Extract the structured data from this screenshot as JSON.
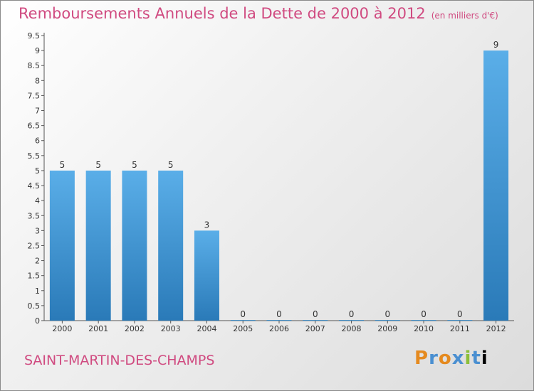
{
  "title": "Remboursements Annuels de la Dette de 2000 à 2012",
  "unit": "(en milliers d'€)",
  "commune": "SAINT-MARTIN-DES-CHAMPS",
  "logo": [
    "P",
    "r",
    "o",
    "x",
    "i",
    "t",
    "i"
  ],
  "colors": {
    "bar_top": "#5aaee8",
    "bar_bottom": "#2a7ab8",
    "title": "#d04a80"
  },
  "chart_data": {
    "type": "bar",
    "title": "Remboursements Annuels de la Dette de 2000 à 2012",
    "subtitle": "(en milliers d'€)",
    "categories": [
      "2000",
      "2001",
      "2002",
      "2003",
      "2004",
      "2005",
      "2006",
      "2007",
      "2008",
      "2009",
      "2010",
      "2011",
      "2012"
    ],
    "values": [
      5,
      5,
      5,
      5,
      3,
      0,
      0,
      0,
      0,
      0,
      0,
      0,
      9
    ],
    "data_labels": [
      "5",
      "5",
      "5",
      "5",
      "3",
      "0",
      "0",
      "0",
      "0",
      "0",
      "0",
      "0",
      "9"
    ],
    "yticks": [
      "0",
      "0.5",
      "1",
      "1.5",
      "2",
      "2.5",
      "3",
      "3.5",
      "4",
      "4.5",
      "5",
      "5.5",
      "6",
      "6.5",
      "7",
      "7.5",
      "8",
      "8.5",
      "9",
      "9.5"
    ],
    "ytick_values": [
      0,
      0.5,
      1,
      1.5,
      2,
      2.5,
      3,
      3.5,
      4,
      4.5,
      5,
      5.5,
      6,
      6.5,
      7,
      7.5,
      8,
      8.5,
      9,
      9.5
    ],
    "ylim": [
      0,
      9.5
    ],
    "grid": false,
    "legend": "none"
  }
}
